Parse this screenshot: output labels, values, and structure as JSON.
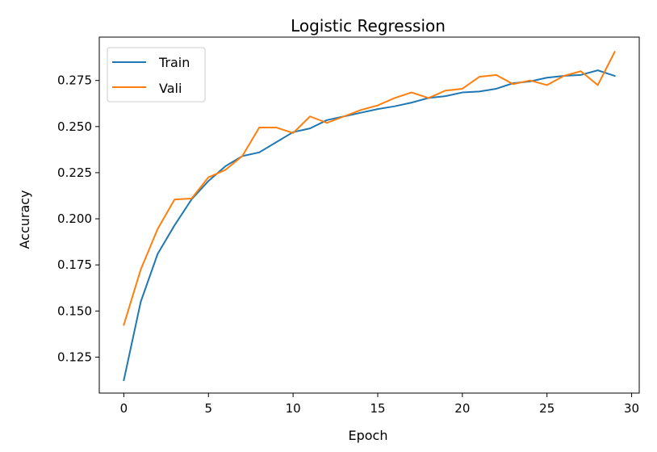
{
  "chart_data": {
    "type": "line",
    "title": "Logistic Regression",
    "xlabel": "Epoch",
    "ylabel": "Accuracy",
    "xlim": [
      -1.45,
      30.45
    ],
    "ylim": [
      0.1055,
      0.2985
    ],
    "xticks": [
      0,
      5,
      10,
      15,
      20,
      25,
      30
    ],
    "xtick_labels": [
      "0",
      "5",
      "10",
      "15",
      "20",
      "25",
      "30"
    ],
    "yticks": [
      0.125,
      0.15,
      0.175,
      0.2,
      0.225,
      0.25,
      0.275
    ],
    "ytick_labels": [
      "0.125",
      "0.150",
      "0.175",
      "0.200",
      "0.225",
      "0.250",
      "0.275"
    ],
    "grid": false,
    "legend_position": "top-left",
    "x": [
      0,
      1,
      2,
      3,
      4,
      5,
      6,
      7,
      8,
      9,
      10,
      11,
      12,
      13,
      14,
      15,
      16,
      17,
      18,
      19,
      20,
      21,
      22,
      23,
      24,
      25,
      26,
      27,
      28,
      29
    ],
    "series": [
      {
        "name": "Train",
        "color": "#1f77b4",
        "values": [
          0.1125,
          0.155,
          0.181,
          0.1965,
          0.2105,
          0.2205,
          0.2285,
          0.234,
          0.236,
          0.2415,
          0.247,
          0.249,
          0.2535,
          0.2555,
          0.2575,
          0.2595,
          0.261,
          0.263,
          0.2655,
          0.2665,
          0.2685,
          0.269,
          0.2705,
          0.2735,
          0.2745,
          0.2765,
          0.2775,
          0.278,
          0.2805,
          0.2775
        ]
      },
      {
        "name": "Vali",
        "color": "#ff7f0e",
        "values": [
          0.1425,
          0.1725,
          0.1945,
          0.2105,
          0.211,
          0.2225,
          0.2265,
          0.234,
          0.2495,
          0.2495,
          0.2465,
          0.2555,
          0.252,
          0.2555,
          0.259,
          0.2615,
          0.2655,
          0.2685,
          0.2655,
          0.2695,
          0.2705,
          0.277,
          0.278,
          0.273,
          0.275,
          0.2725,
          0.2775,
          0.28,
          0.2725,
          0.2905
        ]
      }
    ]
  }
}
